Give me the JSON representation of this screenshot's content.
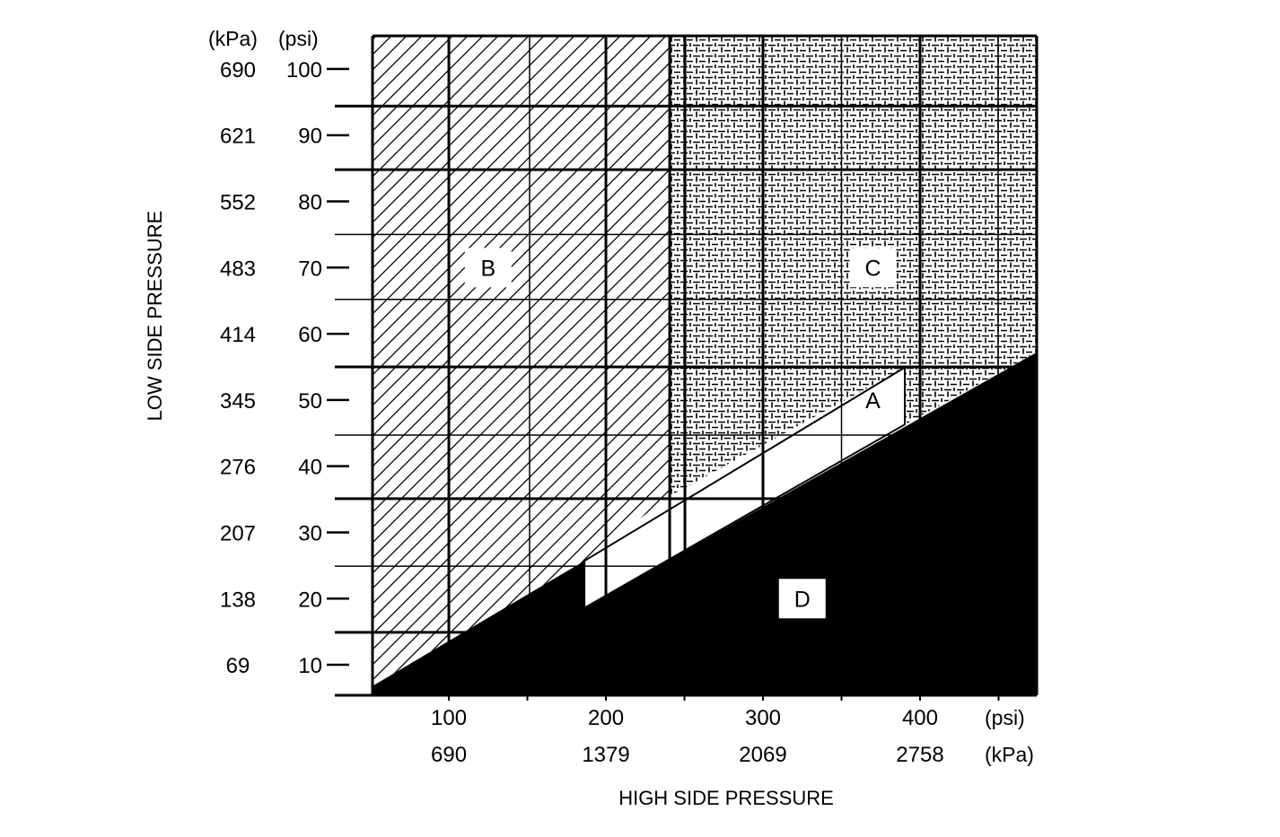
{
  "chart_data": {
    "type": "area",
    "title": "",
    "xlabel": "HIGH SIDE PRESSURE",
    "ylabel": "LOW SIDE PRESSURE",
    "x_units": [
      "(psi)",
      "(kPa)"
    ],
    "y_units": [
      "(kPa)",
      "(psi)"
    ],
    "xlim": [
      51.4,
      474.3
    ],
    "ylim": [
      5.4,
      105.0
    ],
    "x_ticks": [
      {
        "psi": "100",
        "kpa": "690",
        "value": 100
      },
      {
        "psi": "200",
        "kpa": "1379",
        "value": 200
      },
      {
        "psi": "300",
        "kpa": "2069",
        "value": 300
      },
      {
        "psi": "400",
        "kpa": "2758",
        "value": 400
      }
    ],
    "x_minor_ticks": [
      150,
      250,
      350,
      450
    ],
    "y_ticks": [
      {
        "psi": "100",
        "kpa": "690",
        "value": 100
      },
      {
        "psi": "90",
        "kpa": "621",
        "value": 90
      },
      {
        "psi": "80",
        "kpa": "552",
        "value": 80
      },
      {
        "psi": "70",
        "kpa": "483",
        "value": 70
      },
      {
        "psi": "60",
        "kpa": "414",
        "value": 60
      },
      {
        "psi": "50",
        "kpa": "345",
        "value": 50
      },
      {
        "psi": "40",
        "kpa": "276",
        "value": 40
      },
      {
        "psi": "30",
        "kpa": "207",
        "value": 30
      },
      {
        "psi": "20",
        "kpa": "138",
        "value": 20
      },
      {
        "psi": "10",
        "kpa": "69",
        "value": 10
      }
    ],
    "grid": {
      "vertical": [
        {
          "v": 100,
          "thick": true
        },
        {
          "v": 151.4,
          "thick": false
        },
        {
          "v": 200,
          "thick": true
        },
        {
          "v": 240.6,
          "thick": true
        },
        {
          "v": 250.3,
          "thick": true
        },
        {
          "v": 300,
          "thick": true
        },
        {
          "v": 350,
          "thick": false
        },
        {
          "v": 400,
          "thick": true
        },
        {
          "v": 449.7,
          "thick": false
        }
      ],
      "horizontal": [
        {
          "v": 94.4,
          "thick": true
        },
        {
          "v": 84.8,
          "thick": true
        },
        {
          "v": 75,
          "thick": false
        },
        {
          "v": 65.2,
          "thick": false
        },
        {
          "v": 55,
          "thick": true
        },
        {
          "v": 44.7,
          "thick": false
        },
        {
          "v": 35.1,
          "thick": true
        },
        {
          "v": 24.9,
          "thick": false
        },
        {
          "v": 14.9,
          "thick": true
        }
      ]
    },
    "regions": [
      {
        "label": "B",
        "pattern": "diagonal-hatch",
        "polygon": [
          [
            51.4,
            105.0
          ],
          [
            240.6,
            105.0
          ],
          [
            240.6,
            35.5
          ],
          [
            186.3,
            25.7
          ],
          [
            51.4,
            6.8
          ]
        ],
        "label_at": [
          125,
          70
        ]
      },
      {
        "label": "C",
        "pattern": "basket-weave",
        "polygon": [
          [
            240.6,
            105.0
          ],
          [
            474.3,
            105.0
          ],
          [
            474.3,
            57.2
          ],
          [
            390.3,
            46.3
          ],
          [
            390.3,
            54.9
          ],
          [
            240.6,
            35.5
          ]
        ],
        "label_at": [
          370,
          70
        ]
      },
      {
        "label": "A",
        "pattern": "white",
        "polygon": [
          [
            186.3,
            25.7
          ],
          [
            390.3,
            54.9
          ],
          [
            390.3,
            46.3
          ],
          [
            186.3,
            18.6
          ]
        ],
        "label_at": [
          370,
          50
        ]
      },
      {
        "label": "D",
        "pattern": "solid-black",
        "polygon": [
          [
            51.4,
            5.4
          ],
          [
            51.4,
            6.8
          ],
          [
            186.3,
            25.7
          ],
          [
            186.3,
            18.6
          ],
          [
            474.3,
            57.2
          ],
          [
            474.3,
            5.4
          ]
        ],
        "label_at": [
          325,
          20
        ]
      }
    ]
  }
}
